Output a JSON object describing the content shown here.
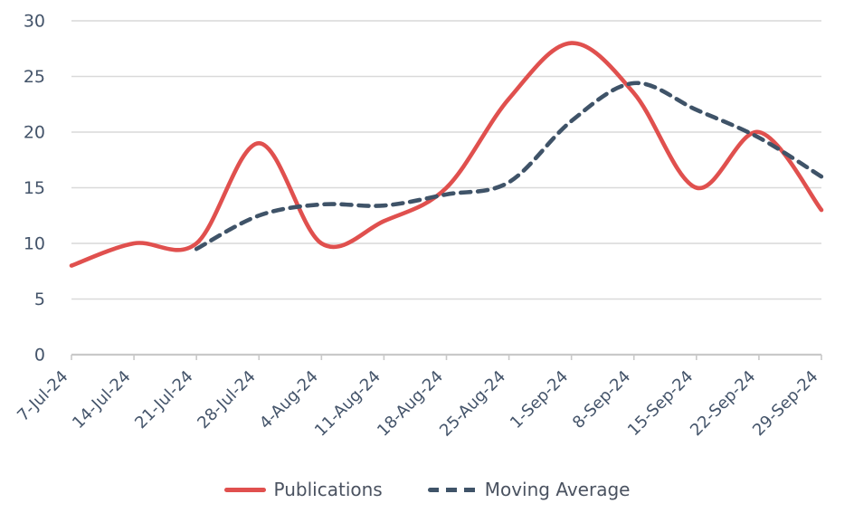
{
  "chart_data": {
    "type": "line",
    "title": "",
    "xlabel": "",
    "ylabel": "",
    "categories": [
      "7-Jul-24",
      "14-Jul-24",
      "21-Jul-24",
      "28-Jul-24",
      "4-Aug-24",
      "11-Aug-24",
      "18-Aug-24",
      "25-Aug-24",
      "1-Sep-24",
      "8-Sep-24",
      "15-Sep-24",
      "22-Sep-24",
      "29-Sep-24"
    ],
    "series": [
      {
        "name": "Publications",
        "line_style": "solid",
        "color": "#E0504E",
        "values": [
          8,
          10,
          10,
          19,
          10,
          12,
          15,
          23,
          28,
          23.5,
          15,
          20,
          13
        ]
      },
      {
        "name": "Moving Average",
        "line_style": "dashed",
        "color": "#3F5368",
        "values": [
          null,
          null,
          9.5,
          12.5,
          13.5,
          13.4,
          14.4,
          15.5,
          21,
          24.4,
          22,
          19.5,
          16
        ]
      }
    ],
    "ylim": [
      0,
      30
    ],
    "yticks": [
      "0",
      "5",
      "10",
      "15",
      "20",
      "25",
      "30"
    ],
    "grid": "horizontal-only",
    "x_label_rotation_deg": -45,
    "legend_position": "bottom-center"
  },
  "legend": {
    "publications_label": "Publications",
    "moving_average_label": "Moving Average"
  },
  "colors": {
    "publications_line": "#E0504E",
    "moving_average_line": "#3F5368",
    "axis_text": "#44546A",
    "gridline": "#D9D9D9",
    "axis_line": "#C9C9C9",
    "background": "#FFFFFF"
  }
}
